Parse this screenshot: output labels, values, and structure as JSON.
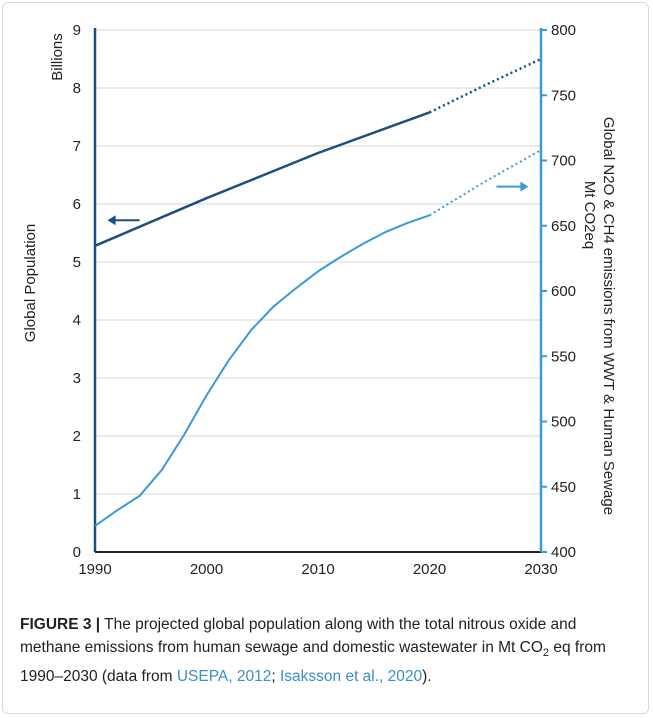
{
  "chart_data": {
    "type": "line",
    "x_ticks": [
      1990,
      2000,
      2010,
      2020,
      2030
    ],
    "xlim": [
      1990,
      2030
    ],
    "left_axis": {
      "label": "Global Population",
      "unit_label": "Billions",
      "ylim": [
        0,
        9
      ],
      "ticks": [
        0,
        1,
        2,
        3,
        4,
        5,
        6,
        7,
        8,
        9
      ],
      "color": "#1b4f80"
    },
    "right_axis": {
      "label": "Global N2O & CH4 emissions from WWT & Human Sewage",
      "label2": "Mt CO2eq",
      "ylim": [
        400,
        800
      ],
      "ticks": [
        400,
        450,
        500,
        550,
        600,
        650,
        700,
        750,
        800
      ],
      "color": "#3a9ad9"
    },
    "grid": true,
    "series": [
      {
        "axis": "left",
        "color": "#1b4f80",
        "points": [
          [
            1990,
            5.28
          ],
          [
            2000,
            6.1
          ],
          [
            2010,
            6.88
          ],
          [
            2020,
            7.58
          ]
        ],
        "projection": [
          [
            2020,
            7.58
          ],
          [
            2025,
            8.05
          ],
          [
            2030,
            8.5
          ]
        ]
      },
      {
        "axis": "right",
        "color": "#3a9ad9",
        "points": [
          [
            1990,
            420
          ],
          [
            1992,
            432
          ],
          [
            1994,
            443
          ],
          [
            1996,
            463
          ],
          [
            1998,
            490
          ],
          [
            2000,
            520
          ],
          [
            2002,
            547
          ],
          [
            2004,
            570
          ],
          [
            2006,
            588
          ],
          [
            2008,
            602
          ],
          [
            2010,
            615
          ],
          [
            2012,
            626
          ],
          [
            2014,
            636
          ],
          [
            2016,
            645
          ],
          [
            2018,
            652
          ],
          [
            2020,
            658
          ]
        ],
        "projection": [
          [
            2020,
            658
          ],
          [
            2025,
            684
          ],
          [
            2030,
            708
          ]
        ]
      }
    ],
    "annotations": [
      {
        "direction": "left",
        "axis": "left",
        "x": 1994,
        "y": 5.72,
        "color": "#1b4f80"
      },
      {
        "direction": "right",
        "axis": "right",
        "x": 2026,
        "y": 680,
        "color": "#3a9ad9"
      }
    ]
  },
  "caption": {
    "label": "FIGURE 3 |",
    "text_1": "The projected global population along with the total nitrous oxide and methane emissions from human sewage and domestic wastewater in Mt CO",
    "sub": "2",
    "text_2": " eq from 1990–2030 (data from ",
    "ref_1": "USEPA, 2012",
    "text_3": "; ",
    "ref_2": "Isaksson et al., 2020",
    "text_4": ")."
  }
}
